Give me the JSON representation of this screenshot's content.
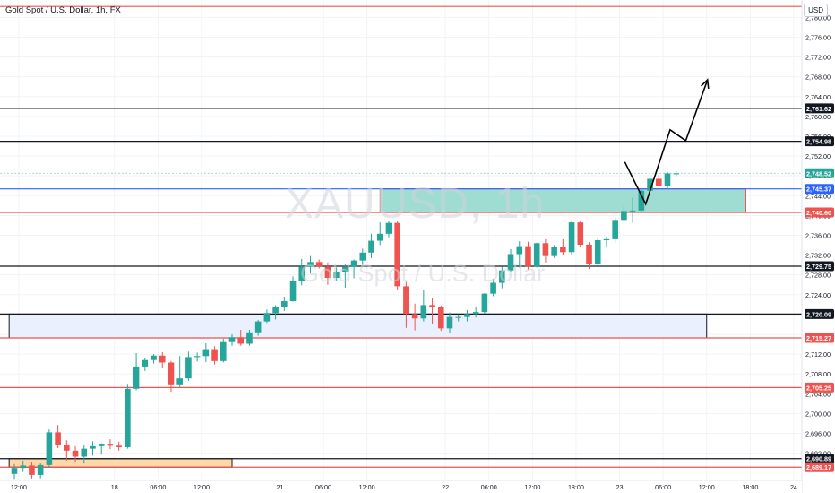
{
  "header": {
    "title": "Gold Spot / U.S. Dollar, 1h, FX",
    "currency": "USD"
  },
  "watermark": {
    "symbol": "XAUUSD, 1h",
    "name": "Gold Spot / U.S. Dollar"
  },
  "colors": {
    "up": "#26a69a",
    "down": "#ef5350",
    "grid": "#f2f3f5",
    "axis_text": "#131722",
    "demand_zone": "#9fdcd2",
    "blue_zone": "#eaf0fd",
    "orange_zone": "#ffd8a8"
  },
  "chart_data": {
    "type": "candlestick",
    "symbol": "XAUUSD",
    "timeframe": "1h",
    "ylim": [
      2686.5,
      2783.5
    ],
    "y_ticks": [
      2692,
      2696,
      2700,
      2704,
      2708,
      2712,
      2716,
      2720,
      2724,
      2728,
      2732,
      2736,
      2740,
      2744,
      2748,
      2752,
      2756,
      2760,
      2764,
      2768,
      2772,
      2776,
      2780
    ],
    "x_ticks": [
      {
        "label": "12:00",
        "x": 0.5
      },
      {
        "label": "18",
        "x": 11.5
      },
      {
        "label": "06:00",
        "x": 16.5
      },
      {
        "label": "12:00",
        "x": 21.5
      },
      {
        "label": "21",
        "x": 30.5
      },
      {
        "label": "06:00",
        "x": 35.5
      },
      {
        "label": "12:00",
        "x": 40.5
      },
      {
        "label": "22",
        "x": 49.5
      },
      {
        "label": "06:00",
        "x": 54.5
      },
      {
        "label": "12:00",
        "x": 59.5
      },
      {
        "label": "18:00",
        "x": 64.5
      },
      {
        "label": "23",
        "x": 69.5
      },
      {
        "label": "06:00",
        "x": 74.5
      },
      {
        "label": "12:00",
        "x": 79.5
      },
      {
        "label": "18:00",
        "x": 84.5
      },
      {
        "label": "24",
        "x": 89.5
      }
    ],
    "candles": [
      [
        2687.8,
        2689.8,
        2686.8,
        2689.0
      ],
      [
        2689.0,
        2690.5,
        2688.2,
        2689.5
      ],
      [
        2689.5,
        2690.3,
        2686.9,
        2687.6
      ],
      [
        2687.6,
        2690.0,
        2686.9,
        2689.6
      ],
      [
        2689.6,
        2696.8,
        2689.3,
        2696.2
      ],
      [
        2696.2,
        2697.7,
        2693.0,
        2693.6
      ],
      [
        2693.6,
        2694.6,
        2690.5,
        2692.5
      ],
      [
        2692.5,
        2693.4,
        2690.3,
        2691.3
      ],
      [
        2691.3,
        2693.6,
        2689.9,
        2692.9
      ],
      [
        2692.9,
        2694.4,
        2691.5,
        2693.4
      ],
      [
        2693.4,
        2694.0,
        2691.7,
        2693.9
      ],
      [
        2693.9,
        2694.8,
        2692.8,
        2693.5
      ],
      [
        2693.5,
        2694.3,
        2692.5,
        2693.2
      ],
      [
        2693.2,
        2706.0,
        2692.9,
        2705.0
      ],
      [
        2705.0,
        2712.2,
        2704.7,
        2709.5
      ],
      [
        2709.5,
        2711.3,
        2708.6,
        2710.8
      ],
      [
        2710.8,
        2712.0,
        2710.1,
        2711.7
      ],
      [
        2711.7,
        2712.4,
        2709.2,
        2710.3
      ],
      [
        2710.3,
        2710.6,
        2704.4,
        2705.9
      ],
      [
        2705.9,
        2711.6,
        2705.4,
        2707.1
      ],
      [
        2707.1,
        2712.5,
        2706.6,
        2711.4
      ],
      [
        2711.4,
        2712.3,
        2710.5,
        2711.6
      ],
      [
        2711.6,
        2714.2,
        2710.4,
        2713.0
      ],
      [
        2713.0,
        2713.6,
        2709.9,
        2710.6
      ],
      [
        2710.6,
        2715.1,
        2710.3,
        2714.6
      ],
      [
        2714.6,
        2716.0,
        2713.7,
        2715.4
      ],
      [
        2715.4,
        2716.9,
        2713.7,
        2714.1
      ],
      [
        2714.1,
        2716.9,
        2713.7,
        2716.4
      ],
      [
        2716.4,
        2718.9,
        2715.7,
        2718.6
      ],
      [
        2718.6,
        2721.0,
        2718.3,
        2720.3
      ],
      [
        2720.3,
        2721.9,
        2719.0,
        2721.6
      ],
      [
        2721.6,
        2723.6,
        2720.7,
        2722.7
      ],
      [
        2722.7,
        2727.7,
        2722.6,
        2726.8
      ],
      [
        2726.8,
        2731.2,
        2725.9,
        2729.6
      ],
      [
        2729.6,
        2731.8,
        2728.3,
        2730.6
      ],
      [
        2730.6,
        2731.1,
        2729.3,
        2729.7
      ],
      [
        2729.7,
        2730.5,
        2726.0,
        2727.4
      ],
      [
        2727.4,
        2729.5,
        2726.8,
        2728.6
      ],
      [
        2728.6,
        2730.1,
        2725.4,
        2729.6
      ],
      [
        2729.6,
        2731.1,
        2727.3,
        2730.9
      ],
      [
        2730.9,
        2733.3,
        2730.0,
        2732.5
      ],
      [
        2732.5,
        2736.3,
        2731.4,
        2734.9
      ],
      [
        2734.9,
        2738.6,
        2734.0,
        2736.3
      ],
      [
        2736.3,
        2738.9,
        2735.6,
        2738.5
      ],
      [
        2738.5,
        2738.8,
        2724.9,
        2725.7
      ],
      [
        2725.7,
        2726.6,
        2717.3,
        2720.1
      ],
      [
        2720.1,
        2722.2,
        2716.8,
        2719.2
      ],
      [
        2719.2,
        2724.9,
        2718.6,
        2721.9
      ],
      [
        2721.9,
        2723.4,
        2718.1,
        2721.5
      ],
      [
        2721.5,
        2721.8,
        2716.7,
        2717.2
      ],
      [
        2717.2,
        2720.4,
        2716.3,
        2719.5
      ],
      [
        2719.5,
        2720.0,
        2718.6,
        2719.5
      ],
      [
        2719.5,
        2720.9,
        2718.6,
        2720.1
      ],
      [
        2720.1,
        2721.6,
        2719.4,
        2720.5
      ],
      [
        2720.5,
        2724.3,
        2720.2,
        2724.2
      ],
      [
        2724.2,
        2727.2,
        2723.7,
        2726.4
      ],
      [
        2726.4,
        2729.6,
        2725.3,
        2728.9
      ],
      [
        2728.9,
        2733.2,
        2728.5,
        2732.2
      ],
      [
        2732.2,
        2734.8,
        2729.5,
        2733.8
      ],
      [
        2733.8,
        2734.7,
        2729.0,
        2729.7
      ],
      [
        2729.7,
        2734.5,
        2729.5,
        2734.4
      ],
      [
        2734.4,
        2735.2,
        2730.5,
        2731.8
      ],
      [
        2731.8,
        2734.0,
        2731.4,
        2733.6
      ],
      [
        2733.6,
        2735.2,
        2732.0,
        2732.6
      ],
      [
        2732.6,
        2738.9,
        2732.0,
        2738.6
      ],
      [
        2738.6,
        2739.0,
        2733.5,
        2734.1
      ],
      [
        2734.1,
        2734.6,
        2729.2,
        2730.2
      ],
      [
        2730.2,
        2735.5,
        2729.9,
        2735.0
      ],
      [
        2735.0,
        2735.7,
        2733.5,
        2735.2
      ],
      [
        2735.2,
        2739.6,
        2734.6,
        2739.1
      ],
      [
        2739.1,
        2741.9,
        2738.8,
        2740.9
      ],
      [
        2740.9,
        2743.6,
        2738.5,
        2741.0
      ],
      [
        2741.0,
        2745.3,
        2740.6,
        2745.0
      ],
      [
        2745.0,
        2748.3,
        2744.6,
        2747.4
      ],
      [
        2747.4,
        2748.2,
        2745.8,
        2746.0
      ],
      [
        2746.0,
        2748.8,
        2745.4,
        2748.5
      ],
      [
        2748.5,
        2748.9,
        2747.9,
        2748.5
      ]
    ],
    "horizontal_levels": [
      {
        "price": 2782.2,
        "color": "#ef5350",
        "label": ""
      },
      {
        "price": 2761.62,
        "color": "#131722",
        "label": "2,761.62",
        "tag_bg": "#131722"
      },
      {
        "price": 2754.98,
        "color": "#131722",
        "label": "2,754.98",
        "tag_bg": "#131722"
      },
      {
        "price": 2748.52,
        "color": "#26a69a",
        "label": "2,748.52",
        "tag_bg": "#26a69a",
        "faint": true
      },
      {
        "price": 2745.37,
        "color": "#2962ff",
        "label": "2,745.37",
        "tag_bg": "#2962ff"
      },
      {
        "price": 2740.6,
        "color": "#ef5350",
        "label": "2,740.60",
        "tag_bg": "#ef5350"
      },
      {
        "price": 2729.75,
        "color": "#131722",
        "label": "2,729.75",
        "tag_bg": "#131722"
      },
      {
        "price": 2720.09,
        "color": "#131722",
        "label": "2,720.09",
        "tag_bg": "#131722"
      },
      {
        "price": 2715.27,
        "color": "#ef5350",
        "label": "2,715.27",
        "tag_bg": "#ef5350"
      },
      {
        "price": 2705.25,
        "color": "#ef5350",
        "label": "2,705.25",
        "tag_bg": "#ef5350"
      },
      {
        "price": 2690.89,
        "color": "#131722",
        "label": "2,690.89",
        "tag_bg": "#131722"
      },
      {
        "price": 2689.17,
        "color": "#ef5350",
        "label": "2,689.17",
        "tag_bg": "#ef5350"
      }
    ],
    "zones": [
      {
        "name": "demand-zone",
        "x0": 42.0,
        "x1": 84.0,
        "y0": 2740.6,
        "y1": 2745.37,
        "fill": "#9fdcd2",
        "stroke": "#ef5350"
      },
      {
        "name": "blue-zone",
        "x0": -0.6,
        "x1": 79.5,
        "y0": 2715.27,
        "y1": 2720.09,
        "fill": "#eaf0fd",
        "stroke": "#131722"
      },
      {
        "name": "orange-zone",
        "x0": -0.6,
        "x1": 25.0,
        "y0": 2689.17,
        "y1": 2690.89,
        "fill": "#ffd8a8",
        "stroke": "#131722"
      }
    ],
    "projection": [
      [
        70.1,
        2750.8
      ],
      [
        72.5,
        2742.3
      ],
      [
        75.3,
        2757.3
      ],
      [
        77.1,
        2755.1
      ],
      [
        79.6,
        2767.4
      ]
    ]
  }
}
